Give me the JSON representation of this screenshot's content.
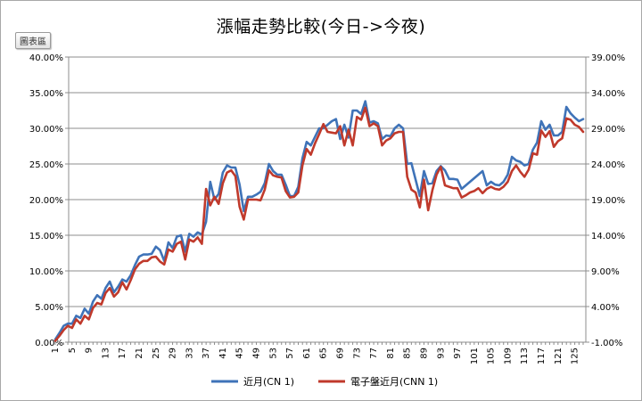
{
  "toolbar": {
    "chart_tab_label": "圖表區"
  },
  "chart_data": {
    "type": "line",
    "title": "漲幅走勢比較(今日->今夜)",
    "xlabel": "",
    "ylabel": "",
    "ylim": [
      0,
      40
    ],
    "y2lim": [
      -1,
      39
    ],
    "yticks": [
      "0.00%",
      "5.00%",
      "10.00%",
      "15.00%",
      "20.00%",
      "25.00%",
      "30.00%",
      "35.00%",
      "40.00%"
    ],
    "y2ticks": [
      "-1.00%",
      "4.00%",
      "9.00%",
      "14.00%",
      "19.00%",
      "24.00%",
      "29.00%",
      "34.00%",
      "39.00%"
    ],
    "xticks": [
      "1",
      "5",
      "9",
      "13",
      "17",
      "21",
      "25",
      "29",
      "33",
      "37",
      "41",
      "45",
      "49",
      "53",
      "57",
      "61",
      "65",
      "69",
      "73",
      "77",
      "81",
      "85",
      "89",
      "93",
      "97",
      "101",
      "105",
      "109",
      "113",
      "117",
      "121",
      "125"
    ],
    "grid": true,
    "legend_position": "bottom",
    "x": [
      1,
      2,
      3,
      4,
      5,
      6,
      7,
      8,
      9,
      10,
      11,
      12,
      13,
      14,
      15,
      16,
      17,
      18,
      19,
      20,
      21,
      22,
      23,
      24,
      25,
      26,
      27,
      28,
      29,
      30,
      31,
      32,
      33,
      34,
      35,
      36,
      37,
      38,
      39,
      40,
      41,
      42,
      43,
      44,
      45,
      46,
      47,
      48,
      49,
      50,
      51,
      52,
      53,
      54,
      55,
      56,
      57,
      58,
      59,
      60,
      61,
      62,
      63,
      64,
      65,
      66,
      67,
      68,
      69,
      70,
      71,
      72,
      73,
      74,
      75,
      76,
      77,
      78,
      79,
      80,
      81,
      82,
      83,
      84,
      85,
      86,
      87,
      88,
      89,
      90,
      91,
      92,
      93,
      94,
      95,
      96,
      97,
      98,
      99,
      100,
      101,
      102,
      103,
      104,
      105,
      106,
      107,
      108,
      109,
      110,
      111,
      112,
      113,
      114,
      115,
      116,
      117,
      118,
      119,
      120,
      121,
      122,
      123,
      124,
      125,
      126,
      127
    ],
    "series": [
      {
        "name": "近月(CN 1)",
        "color": "#3f73b8",
        "values": [
          0.4,
          1.3,
          2.3,
          2.6,
          2.6,
          3.7,
          3.4,
          4.7,
          4.0,
          5.7,
          6.6,
          6.1,
          7.6,
          8.5,
          7.0,
          7.8,
          8.8,
          8.5,
          9.4,
          10.8,
          12.0,
          12.3,
          12.3,
          12.4,
          13.4,
          12.9,
          11.4,
          14.0,
          13.2,
          14.8,
          15.0,
          12.7,
          15.2,
          14.8,
          15.4,
          15.1,
          16.9,
          22.5,
          20.0,
          20.8,
          23.8,
          24.8,
          24.5,
          24.5,
          22.1,
          18.4,
          20.4,
          20.4,
          20.7,
          21.1,
          22.3,
          25.0,
          24.0,
          23.5,
          23.5,
          22.1,
          20.5,
          20.5,
          21.8,
          25.8,
          28.1,
          27.6,
          28.8,
          30.0,
          30.0,
          30.5,
          31.0,
          31.3,
          28.5,
          30.5,
          28.7,
          32.5,
          32.5,
          32.0,
          33.8,
          30.8,
          31.0,
          30.7,
          28.5,
          29.0,
          28.9,
          30.0,
          30.5,
          30.0,
          25.0,
          25.1,
          22.8,
          20.5,
          24.0,
          22.2,
          22.3,
          24.0,
          24.7,
          24.1,
          22.9,
          22.9,
          22.8,
          21.5,
          22.0,
          22.5,
          23.0,
          23.5,
          24.0,
          22.0,
          22.5,
          22.1,
          22.0,
          22.5,
          23.5,
          26.0,
          25.5,
          25.3,
          24.8,
          25.0,
          27.0,
          28.0,
          31.0,
          29.8,
          30.5,
          29.0,
          29.0,
          29.5,
          33.0,
          32.1,
          31.5,
          31.0,
          31.3
        ]
      },
      {
        "name": "電子盤近月(CNN  1)",
        "color": "#c0392b",
        "values": [
          0.2,
          0.9,
          1.7,
          2.3,
          2.0,
          3.2,
          2.6,
          3.7,
          3.2,
          4.8,
          5.5,
          5.3,
          6.9,
          7.6,
          6.4,
          7.0,
          8.4,
          7.4,
          8.7,
          10.2,
          11.0,
          11.4,
          11.4,
          11.9,
          12.0,
          11.3,
          10.9,
          13.0,
          12.7,
          13.8,
          14.1,
          11.6,
          14.4,
          14.1,
          14.7,
          13.8,
          21.5,
          19.2,
          20.4,
          19.4,
          22.3,
          23.8,
          24.1,
          23.3,
          19.0,
          17.2,
          20.0,
          20.0,
          20.0,
          19.9,
          21.4,
          24.1,
          23.4,
          23.2,
          23.1,
          21.2,
          20.3,
          20.4,
          21.0,
          24.8,
          27.1,
          26.3,
          27.9,
          29.2,
          30.6,
          29.5,
          29.4,
          29.3,
          30.3,
          27.6,
          29.8,
          27.6,
          31.6,
          31.2,
          32.9,
          30.3,
          30.7,
          30.3,
          27.6,
          28.3,
          28.6,
          29.3,
          29.5,
          29.5,
          23.2,
          21.4,
          21.0,
          18.9,
          22.8,
          18.5,
          21.3,
          23.5,
          24.6,
          22.0,
          21.8,
          21.6,
          21.6,
          20.3,
          20.6,
          21.0,
          21.2,
          21.6,
          20.9,
          21.5,
          21.8,
          21.5,
          21.4,
          21.8,
          22.5,
          24.0,
          24.8,
          23.9,
          23.2,
          24.2,
          26.5,
          26.3,
          29.7,
          28.8,
          29.6,
          27.4,
          28.2,
          28.6,
          31.4,
          31.2,
          30.5,
          30.2,
          29.5
        ]
      }
    ]
  }
}
